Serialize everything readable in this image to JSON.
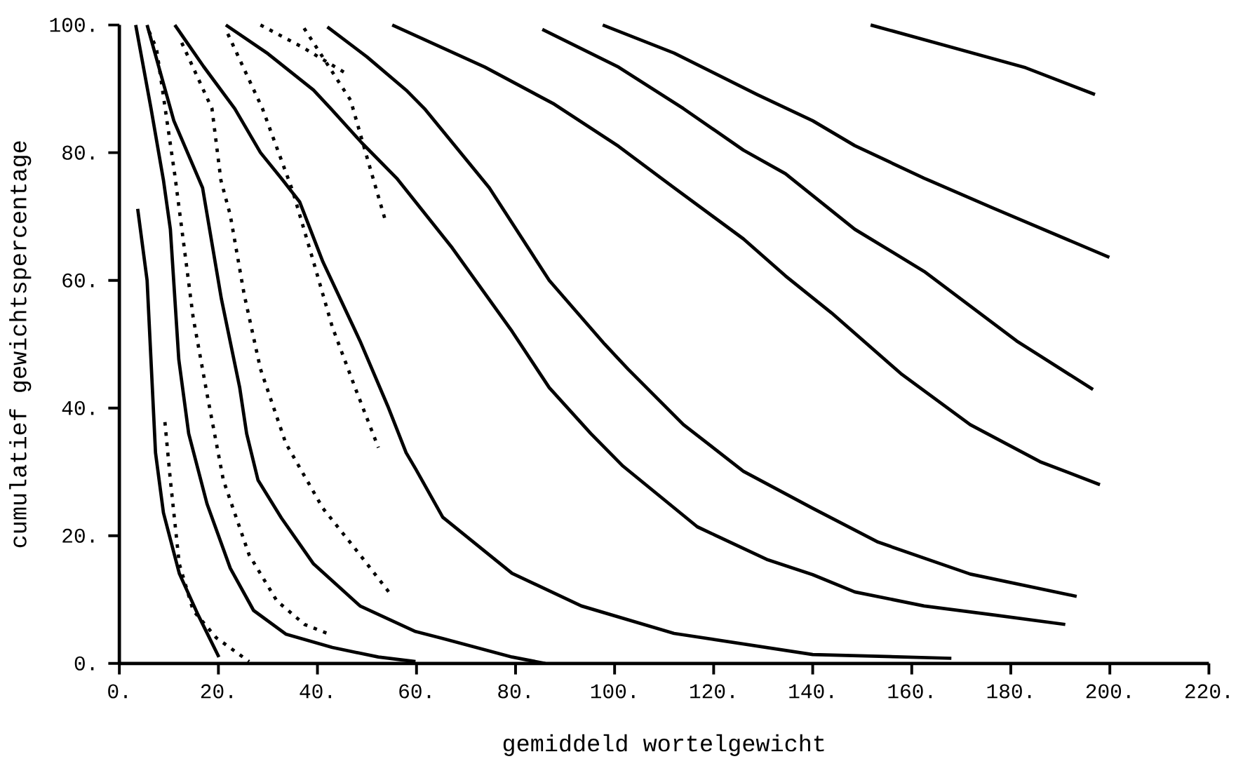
{
  "chart_data": {
    "type": "line",
    "xlabel": "gemiddeld wortelgewicht",
    "ylabel": "cumulatief gewichtspercentage",
    "xlim": [
      0,
      220
    ],
    "ylim": [
      0,
      100
    ],
    "xticks": [
      {
        "value": 0,
        "label": "0."
      },
      {
        "value": 20,
        "label": "20."
      },
      {
        "value": 40,
        "label": "40."
      },
      {
        "value": 60,
        "label": "60."
      },
      {
        "value": 80,
        "label": "80."
      },
      {
        "value": 100,
        "label": "100."
      },
      {
        "value": 120,
        "label": "120."
      },
      {
        "value": 140,
        "label": "140."
      },
      {
        "value": 160,
        "label": "160."
      },
      {
        "value": 180,
        "label": "180."
      },
      {
        "value": 200,
        "label": "200."
      },
      {
        "value": 220,
        "label": "220."
      }
    ],
    "yticks": [
      {
        "value": 0,
        "label": "0."
      },
      {
        "value": 20,
        "label": "20."
      },
      {
        "value": 40,
        "label": "40."
      },
      {
        "value": 60,
        "label": "60."
      },
      {
        "value": 80,
        "label": "80."
      },
      {
        "value": 100,
        "label": "100."
      }
    ],
    "line_style": "solid",
    "series": [
      {
        "color": "#000000",
        "x": [
          3.7,
          5.6,
          7.3,
          8.9,
          12.1,
          15.9,
          20.1
        ],
        "values": [
          71.2,
          60,
          33,
          23.6,
          14.1,
          7.6,
          1
        ]
      },
      {
        "color": "#000000",
        "line_style": "dotted",
        "x": [
          9.2,
          10.3,
          12.1,
          14.9,
          19.6,
          26.2
        ],
        "values": [
          37.8,
          28.7,
          15.6,
          8.3,
          4,
          0.3
        ]
      },
      {
        "color": "#000000",
        "x": [
          3.3,
          6.4,
          8.9,
          10.3,
          12,
          14,
          17.7,
          22.4,
          27.1,
          33.6,
          43,
          52.3,
          59.8
        ],
        "values": [
          100,
          86.9,
          75.7,
          68,
          47.6,
          36,
          25,
          14.9,
          8.3,
          4.6,
          2.5,
          1,
          0.3
        ]
      },
      {
        "color": "#000000",
        "line_style": "dotted",
        "x": [
          6,
          7.5,
          11.2,
          13.1,
          14.9,
          17.8,
          21,
          26.2,
          31.8,
          37.4,
          42
        ],
        "values": [
          99,
          96.3,
          76.5,
          65.1,
          54.2,
          41.8,
          28.7,
          17,
          9.8,
          6.1,
          4.7
        ]
      },
      {
        "color": "#000000",
        "x": [
          5.6,
          11,
          16.8,
          20.6,
          24.3,
          25.7,
          28,
          32.7,
          39.2,
          48.6,
          59.8,
          65.3,
          79.3,
          86
        ],
        "values": [
          100,
          85,
          74.5,
          57.1,
          43.2,
          36,
          28.7,
          22.8,
          15.6,
          9,
          5,
          3.9,
          1,
          0
        ]
      },
      {
        "color": "#000000",
        "line_style": "dotted",
        "x": [
          12.6,
          18.7,
          20.5,
          22.4,
          25.2,
          28.5,
          33.6,
          41.1,
          48.6,
          55.1
        ],
        "values": [
          97.2,
          86.9,
          75.7,
          70.2,
          57.8,
          46.1,
          34.5,
          24.3,
          17,
          10.5
        ]
      },
      {
        "color": "#000000",
        "x": [
          11.2,
          17,
          23.3,
          28.5,
          33.1,
          36.4,
          41.1,
          48.6,
          54.2,
          57.9,
          59.8,
          65.3,
          79.3,
          93.3,
          112,
          140,
          168
        ],
        "values": [
          100,
          93.5,
          86.9,
          80,
          75.6,
          72.3,
          62.9,
          50.5,
          40.3,
          33,
          30.5,
          22.9,
          14.1,
          9,
          4.7,
          1.4,
          0.8
        ]
      },
      {
        "color": "#000000",
        "line_style": "dotted",
        "x": [
          21.9,
          28.9,
          35,
          39.2,
          43,
          47.6,
          52.3
        ],
        "values": [
          98.6,
          86.9,
          74,
          62.9,
          52.7,
          43.2,
          33.8
        ]
      },
      {
        "color": "#000000",
        "line_style": "dotted",
        "x": [
          28.5,
          37,
          45.8
        ],
        "values": [
          100,
          96.5,
          92.4
        ]
      },
      {
        "color": "#000000",
        "line_style": "dotted",
        "x": [
          37.3,
          46.7,
          50.4,
          53.7
        ],
        "values": [
          99.5,
          88.2,
          78.2,
          69.4
        ]
      },
      {
        "color": "#000000",
        "x": [
          21.5,
          30,
          39.2,
          42.7,
          49,
          56,
          67.2,
          79.3,
          86.8,
          95.2,
          101.7,
          116.7,
          130.7,
          140,
          148.5,
          162.5,
          176.5,
          191
        ],
        "values": [
          100,
          95.5,
          89.8,
          86.9,
          81.5,
          76,
          65.1,
          52,
          43.2,
          36,
          30.9,
          21.4,
          16.3,
          13.9,
          11.2,
          9,
          7.6,
          6.1
        ]
      },
      {
        "color": "#000000",
        "x": [
          42,
          50,
          57.9,
          61.6,
          74.7,
          86.8,
          98,
          102.7,
          113.9,
          126,
          140,
          153.2,
          171.8,
          193.3
        ],
        "values": [
          99.7,
          95,
          89.8,
          86.9,
          74.5,
          60,
          50,
          46.1,
          37.4,
          30.1,
          24.3,
          19,
          14,
          10.5
        ]
      },
      {
        "color": "#000000",
        "x": [
          55.1,
          73.8,
          87.8,
          100.8,
          112,
          126,
          134.5,
          143.8,
          157.8,
          171.8,
          185.9,
          198
        ],
        "values": [
          100,
          93.4,
          87.6,
          81,
          74.5,
          66.5,
          60.7,
          54.9,
          45.4,
          37.4,
          31.6,
          28
        ]
      },
      {
        "color": "#000000",
        "x": [
          85.4,
          100.8,
          113.9,
          126,
          134.5,
          148.5,
          162.5,
          181.2,
          196.6
        ],
        "values": [
          99.3,
          93.4,
          86.9,
          80.4,
          76.7,
          68,
          61.4,
          50.5,
          42.9
        ]
      },
      {
        "color": "#000000",
        "x": [
          97.6,
          112,
          128.8,
          140,
          148.5,
          162.5,
          176.5,
          199.9
        ],
        "values": [
          100,
          95.6,
          89.1,
          85,
          81.1,
          76,
          71.3,
          63.6
        ]
      },
      {
        "color": "#000000",
        "x": [
          151.7,
          166.2,
          183,
          197
        ],
        "values": [
          100,
          96.9,
          93.3,
          89.1
        ]
      }
    ]
  }
}
